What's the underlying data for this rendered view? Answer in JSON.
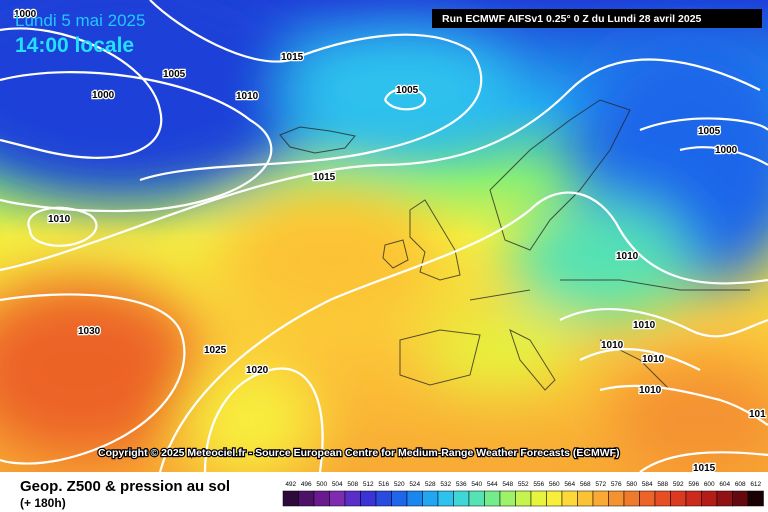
{
  "header": {
    "date": "Lundi 5 mai 2025",
    "time": "14:00 locale",
    "run": "Run ECMWF AIFSv1 0.25° 0 Z du Lundi 28 avril 2025"
  },
  "isobar_labels": [
    "1000",
    "1005",
    "1015",
    "1010",
    "1000",
    "1005",
    "1005",
    "1000",
    "1015",
    "1010",
    "1010",
    "1030",
    "1025",
    "1020",
    "1010",
    "1010",
    "1010",
    "1010",
    "1015",
    "101"
  ],
  "copyright": "Copyright © 2025 Meteociel.fr - Source European Centre for Medium-Range Weather Forecasts (ECMWF)",
  "footer": {
    "title": "Geop. Z500 & pression au sol",
    "subtitle": "(+ 180h)"
  },
  "legend": {
    "labels": [
      "492",
      "496",
      "500",
      "504",
      "508",
      "512",
      "516",
      "520",
      "524",
      "528",
      "532",
      "536",
      "540",
      "544",
      "548",
      "552",
      "556",
      "560",
      "564",
      "568",
      "572",
      "576",
      "580",
      "584",
      "588",
      "592",
      "596",
      "600",
      "604",
      "608",
      "612"
    ],
    "colors": [
      "#2d0a3a",
      "#4b1268",
      "#6a1a8f",
      "#7e2bb0",
      "#5a2ec8",
      "#3a34d6",
      "#2a4be0",
      "#1f66ea",
      "#1c86f0",
      "#22a6f2",
      "#2ec2ee",
      "#3fd6d8",
      "#55e2b4",
      "#74ec8c",
      "#9ef26a",
      "#c6f44e",
      "#e6f43e",
      "#f8ee3c",
      "#fcd83a",
      "#fcc236",
      "#f8aa34",
      "#f49230",
      "#f07a2c",
      "#ec6428",
      "#e64e24",
      "#dc3a20",
      "#cc2a1c",
      "#b41c18",
      "#901214",
      "#640a0e",
      "#1a0204"
    ]
  }
}
